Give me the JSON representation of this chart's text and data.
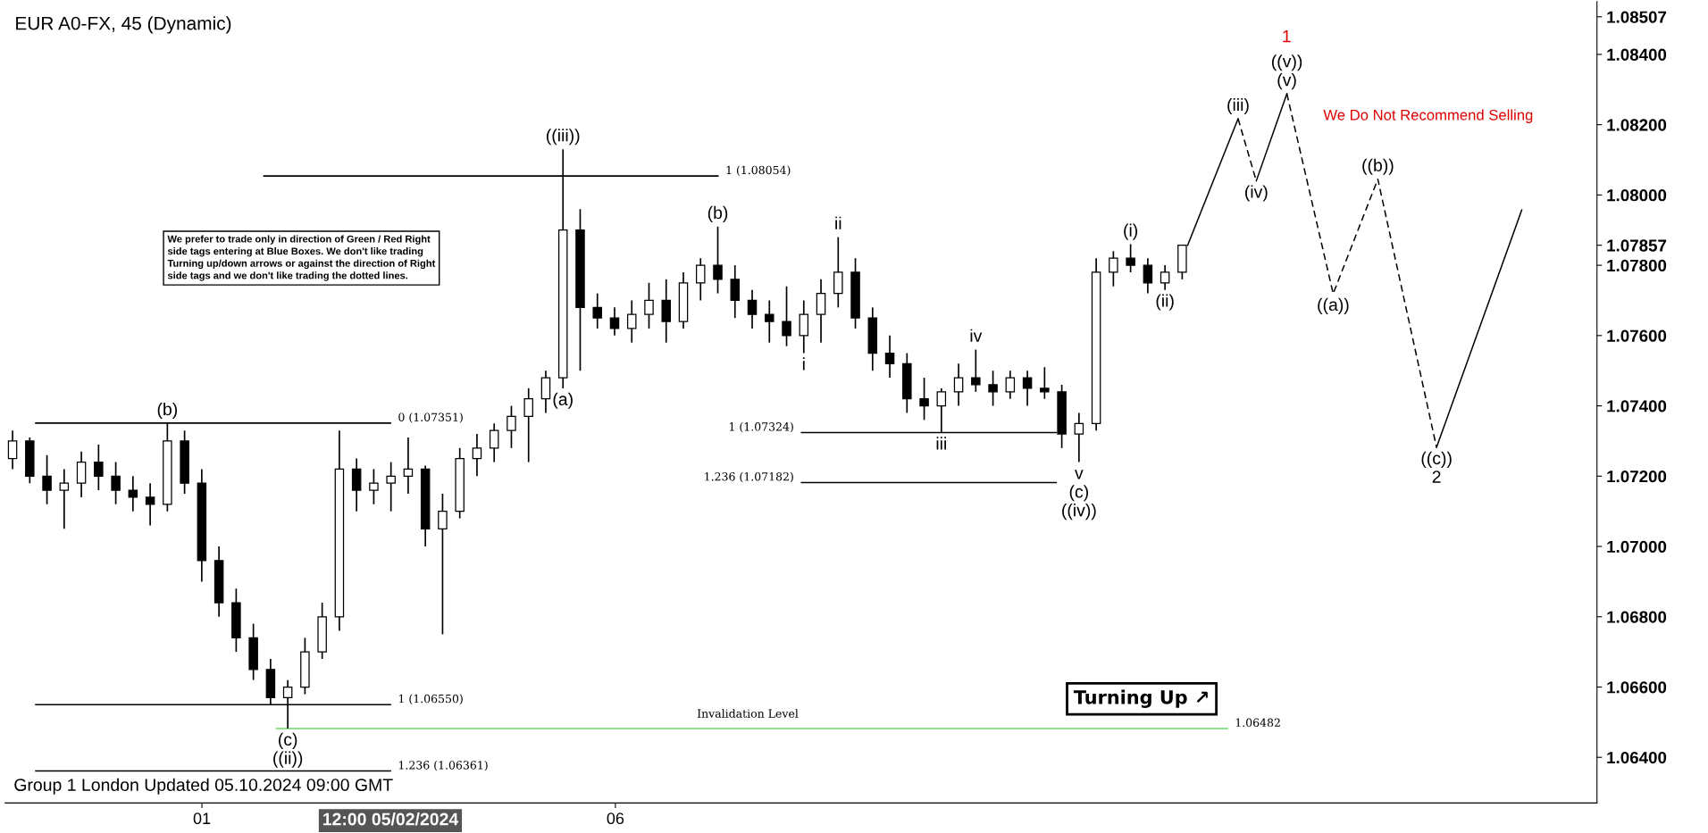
{
  "chart_data": {
    "type": "candlestick",
    "title": "EUR A0-FX, 45 (Dynamic)",
    "color": "#000000",
    "x": [
      -1.29,
      -1.082,
      -0.874,
      -0.666,
      -0.458,
      -0.25,
      -0.042,
      0.166,
      0.374,
      0.582,
      0.79,
      0.998,
      1.206,
      1.414,
      1.622,
      1.83,
      2.038,
      2.246,
      2.454,
      2.662,
      2.87,
      3.078,
      3.286,
      3.494,
      3.702,
      3.91,
      4.118,
      4.326,
      4.534,
      4.742,
      4.95,
      5.158,
      5.366,
      5.574,
      5.782,
      5.99,
      6.198,
      6.406,
      6.614,
      6.822,
      7.03,
      7.238,
      7.446,
      7.654,
      7.862,
      8.07,
      8.278,
      8.486,
      8.694,
      8.902,
      9.11,
      9.318,
      9.526,
      9.734,
      9.942,
      10.15,
      10.358,
      10.566,
      10.774,
      10.982,
      11.19,
      11.398,
      11.606,
      11.814,
      12.022,
      12.23,
      12.438,
      12.646,
      12.854
    ],
    "ohlc": [
      [
        1.0725,
        1.0733,
        1.0722,
        1.073
      ],
      [
        1.073,
        1.0731,
        1.0718,
        1.072
      ],
      [
        1.072,
        1.0726,
        1.0712,
        1.0716
      ],
      [
        1.0716,
        1.0722,
        1.0705,
        1.0718
      ],
      [
        1.0718,
        1.0727,
        1.0714,
        1.0724
      ],
      [
        1.0724,
        1.0729,
        1.0716,
        1.072
      ],
      [
        1.072,
        1.0724,
        1.0712,
        1.0716
      ],
      [
        1.0716,
        1.072,
        1.071,
        1.0714
      ],
      [
        1.0714,
        1.0718,
        1.0706,
        1.0712
      ],
      [
        1.0712,
        1.07351,
        1.071,
        1.073
      ],
      [
        1.073,
        1.0733,
        1.0715,
        1.0718
      ],
      [
        1.0718,
        1.0722,
        1.069,
        1.0696
      ],
      [
        1.0696,
        1.07,
        1.068,
        1.0684
      ],
      [
        1.0684,
        1.0688,
        1.067,
        1.0674
      ],
      [
        1.0674,
        1.0678,
        1.0662,
        1.0665
      ],
      [
        1.0665,
        1.0668,
        1.0655,
        1.0657
      ],
      [
        1.0657,
        1.0662,
        1.06482,
        1.066
      ],
      [
        1.066,
        1.0674,
        1.0658,
        1.067
      ],
      [
        1.067,
        1.0684,
        1.0668,
        1.068
      ],
      [
        1.068,
        1.0733,
        1.0676,
        1.0722
      ],
      [
        1.0722,
        1.0725,
        1.071,
        1.0716
      ],
      [
        1.0716,
        1.0722,
        1.0712,
        1.0718
      ],
      [
        1.0718,
        1.0724,
        1.071,
        1.072
      ],
      [
        1.072,
        1.0731,
        1.0715,
        1.0722
      ],
      [
        1.0722,
        1.0723,
        1.07,
        1.0705
      ],
      [
        1.0705,
        1.0715,
        1.0675,
        1.071
      ],
      [
        1.071,
        1.0728,
        1.0708,
        1.0725
      ],
      [
        1.0725,
        1.0732,
        1.072,
        1.0728
      ],
      [
        1.0728,
        1.0735,
        1.0724,
        1.0733
      ],
      [
        1.0733,
        1.074,
        1.0728,
        1.0737
      ],
      [
        1.0737,
        1.0745,
        1.0724,
        1.0742
      ],
      [
        1.0742,
        1.075,
        1.0738,
        1.0748
      ],
      [
        1.0748,
        1.0813,
        1.0745,
        1.079
      ],
      [
        1.079,
        1.0796,
        1.075,
        1.0768
      ],
      [
        1.0768,
        1.0772,
        1.0762,
        1.0765
      ],
      [
        1.0765,
        1.0768,
        1.076,
        1.0762
      ],
      [
        1.0762,
        1.077,
        1.0758,
        1.0766
      ],
      [
        1.0766,
        1.0775,
        1.0762,
        1.077
      ],
      [
        1.077,
        1.0776,
        1.0758,
        1.0764
      ],
      [
        1.0764,
        1.0778,
        1.0762,
        1.0775
      ],
      [
        1.0775,
        1.0782,
        1.077,
        1.078
      ],
      [
        1.078,
        1.0791,
        1.0772,
        1.0776
      ],
      [
        1.0776,
        1.078,
        1.0765,
        1.077
      ],
      [
        1.077,
        1.0773,
        1.0762,
        1.0766
      ],
      [
        1.0766,
        1.077,
        1.0758,
        1.0764
      ],
      [
        1.0764,
        1.0774,
        1.0757,
        1.076
      ],
      [
        1.076,
        1.077,
        1.0755,
        1.0766
      ],
      [
        1.0766,
        1.0776,
        1.0758,
        1.0772
      ],
      [
        1.0772,
        1.0788,
        1.0768,
        1.0778
      ],
      [
        1.0778,
        1.0782,
        1.0762,
        1.0765
      ],
      [
        1.0765,
        1.0768,
        1.075,
        1.0755
      ],
      [
        1.0755,
        1.076,
        1.0748,
        1.0752
      ],
      [
        1.0752,
        1.0755,
        1.0738,
        1.0742
      ],
      [
        1.0742,
        1.0748,
        1.0736,
        1.074
      ],
      [
        1.074,
        1.0745,
        1.07324,
        1.0744
      ],
      [
        1.0744,
        1.0752,
        1.074,
        1.0748
      ],
      [
        1.0748,
        1.0756,
        1.0744,
        1.0746
      ],
      [
        1.0746,
        1.075,
        1.074,
        1.0744
      ],
      [
        1.0744,
        1.075,
        1.0742,
        1.0748
      ],
      [
        1.0748,
        1.075,
        1.074,
        1.0745
      ],
      [
        1.0745,
        1.0751,
        1.0742,
        1.0744
      ],
      [
        1.0744,
        1.0746,
        1.0728,
        1.0732
      ],
      [
        1.0732,
        1.0738,
        1.0724,
        1.0735
      ],
      [
        1.0735,
        1.0782,
        1.0733,
        1.0778
      ],
      [
        1.0778,
        1.0784,
        1.0774,
        1.0782
      ],
      [
        1.0782,
        1.0786,
        1.0778,
        1.078
      ],
      [
        1.078,
        1.0782,
        1.0772,
        1.0775
      ],
      [
        1.0775,
        1.078,
        1.0773,
        1.0778
      ],
      [
        1.0778,
        1.07857,
        1.0776,
        1.07857
      ]
    ],
    "series": [
      {
        "type": "line",
        "color": "#000000",
        "line_style": "solid",
        "x": [
          -1.01,
          3.28
        ],
        "values": [
          1.07351,
          1.07351
        ]
      },
      {
        "type": "line",
        "color": "#000000",
        "line_style": "solid",
        "x": [
          -1.01,
          3.28
        ],
        "values": [
          1.0655,
          1.0655
        ]
      },
      {
        "type": "line",
        "color": "#000000",
        "line_style": "solid",
        "x": [
          -1.01,
          3.28
        ],
        "values": [
          1.06361,
          1.06361
        ]
      },
      {
        "type": "line",
        "color": "#000000",
        "line_style": "solid",
        "x": [
          1.75,
          7.24
        ],
        "values": [
          1.08054,
          1.08054
        ]
      },
      {
        "type": "line",
        "color": "#000000",
        "line_style": "solid",
        "x": [
          8.25,
          11.33
        ],
        "values": [
          1.07324,
          1.07324
        ]
      },
      {
        "type": "line",
        "color": "#000000",
        "line_style": "solid",
        "x": [
          8.25,
          11.33
        ],
        "values": [
          1.07182,
          1.07182
        ]
      },
      {
        "type": "line",
        "color": "#66dd66",
        "line_style": "solid",
        "x": [
          1.9,
          13.4
        ],
        "values": [
          1.06482,
          1.06482
        ]
      },
      {
        "type": "line",
        "color": "#000000",
        "line_style": "solid",
        "x": [
          12.92,
          13.53
        ],
        "values": [
          1.07857,
          1.08217
        ]
      },
      {
        "type": "line",
        "color": "#000000",
        "line_style": "dashed",
        "x": [
          13.53,
          13.75
        ],
        "values": [
          1.08217,
          1.0804
        ]
      },
      {
        "type": "line",
        "color": "#000000",
        "line_style": "solid",
        "x": [
          13.75,
          14.12
        ],
        "values": [
          1.0804,
          1.08288
        ]
      },
      {
        "type": "line",
        "color": "#000000",
        "line_style": "dashed",
        "x": [
          14.12,
          14.68,
          15.22,
          15.93
        ],
        "values": [
          1.08288,
          1.07719,
          1.08045,
          1.07282
        ]
      },
      {
        "type": "line",
        "color": "#000000",
        "line_style": "solid",
        "x": [
          15.93,
          16.96
        ],
        "values": [
          1.07282,
          1.07957
        ]
      }
    ],
    "annotations": [
      {
        "text": "0 (1.07351)",
        "x": 3.28,
        "y": 1.07351
      },
      {
        "text": "1 (1.06550)",
        "x": 3.28,
        "y": 1.0655
      },
      {
        "text": "1.236 (1.06361)",
        "x": 3.28,
        "y": 1.06361
      },
      {
        "text": "1 (1.08054)",
        "x": 7.24,
        "y": 1.08054
      },
      {
        "text": "1 (1.07324)",
        "x": 8.25,
        "y": 1.07324
      },
      {
        "text": "1.236 (1.07182)",
        "x": 8.25,
        "y": 1.07182
      },
      {
        "text": "Invalidation Level",
        "x": 7.6,
        "y": 1.06482
      },
      {
        "text": "1.06482",
        "x": 13.4,
        "y": 1.06482
      },
      {
        "text": "(b)",
        "x": 0.582,
        "y": 1.07351
      },
      {
        "text": "(c)",
        "x": 2.038,
        "y": 1.06482
      },
      {
        "text": "((ii))",
        "x": 2.038,
        "y": 1.06482
      },
      {
        "text": "(a)",
        "x": 5.366,
        "y": 1.0745
      },
      {
        "text": "((iii))",
        "x": 5.366,
        "y": 1.0813
      },
      {
        "text": "(b)",
        "x": 7.238,
        "y": 1.0791
      },
      {
        "text": "i",
        "x": 8.278,
        "y": 1.0755
      },
      {
        "text": "ii",
        "x": 8.694,
        "y": 1.0788
      },
      {
        "text": "iii",
        "x": 9.942,
        "y": 1.07324
      },
      {
        "text": "iv",
        "x": 10.358,
        "y": 1.0756
      },
      {
        "text": "v",
        "x": 11.606,
        "y": 1.0724
      },
      {
        "text": "(c)",
        "x": 11.606,
        "y": 1.0724
      },
      {
        "text": "((iv))",
        "x": 11.606,
        "y": 1.0724
      },
      {
        "text": "(i)",
        "x": 12.23,
        "y": 1.0786
      },
      {
        "text": "(ii)",
        "x": 12.646,
        "y": 1.0773
      },
      {
        "text": "(iii)",
        "x": 13.53,
        "y": 1.08217
      },
      {
        "text": "(iv)",
        "x": 13.75,
        "y": 1.0804
      },
      {
        "text": "(v)",
        "x": 14.12,
        "y": 1.08288
      },
      {
        "text": "((v))",
        "x": 14.12,
        "y": 1.08288
      },
      {
        "text": "((a))",
        "x": 14.68,
        "y": 1.07719
      },
      {
        "text": "((b))",
        "x": 15.22,
        "y": 1.08045
      },
      {
        "text": "((c))",
        "x": 15.93,
        "y": 1.07282
      },
      {
        "text": "2",
        "x": 15.93,
        "y": 1.07282
      },
      "We prefer to trade only in direction of Green / Red Right\nside tags entering at Blue Boxes. We don't like trading\nTurning up/down arrows or against the direction of Right\nside tags and we don't like trading the dotted lines.",
      "Turning Up ↗",
      "We Do Not Recommend Selling",
      "12:00 05/02/2024",
      "Group 1 London Updated 05.10.2024 09:00 GMT",
      "1"
    ],
    "xlim": [
      -1.38,
      17.87
    ],
    "xticks": [
      {
        "value": 1,
        "label": "01"
      },
      {
        "value": 6,
        "label": "06"
      }
    ],
    "ylim": [
      1.0627,
      1.0855
    ],
    "yticks": [
      {
        "value": 1.064,
        "label": "1.06400"
      },
      {
        "value": 1.066,
        "label": "1.06600"
      },
      {
        "value": 1.068,
        "label": "1.06800"
      },
      {
        "value": 1.07,
        "label": "1.07000"
      },
      {
        "value": 1.072,
        "label": "1.07200"
      },
      {
        "value": 1.074,
        "label": "1.07400"
      },
      {
        "value": 1.076,
        "label": "1.07600"
      },
      1.07857,
      {
        "value": 1.078,
        "label": "1.07800"
      },
      {
        "value": 1.08,
        "label": "1.08000"
      },
      {
        "value": 1.082,
        "label": "1.08200"
      },
      {
        "value": 1.084,
        "label": "1.08400"
      },
      1.08507
    ],
    "grid": false,
    "legend": false
  }
}
